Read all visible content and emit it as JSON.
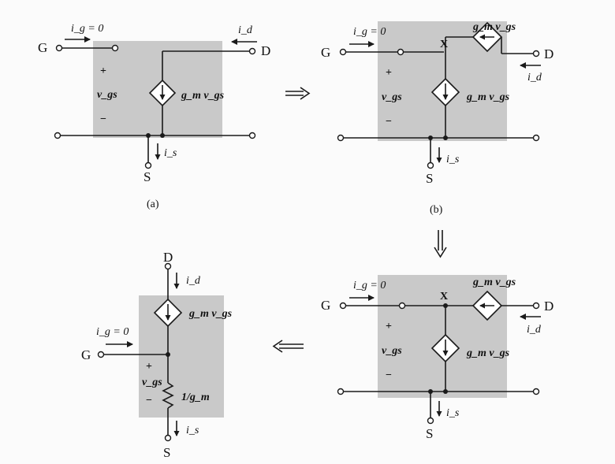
{
  "figure": {
    "panel_a": {
      "caption": "(a)",
      "ig_text": "i_g = 0",
      "id_text": "i_d",
      "is_text": "i_s",
      "source_text": "g_m v_gs",
      "gate": "G",
      "drain": "D",
      "source": "S",
      "plus": "+",
      "minus": "−",
      "vgs": "v_gs"
    },
    "panel_b": {
      "caption": "(b)",
      "ig_text": "i_g = 0",
      "id_text": "i_d",
      "is_text": "i_s",
      "source_text_top": "g_m v_gs",
      "source_text_bottom": "g_m v_gs",
      "node_x": "X",
      "gate": "G",
      "drain": "D",
      "source": "S",
      "plus": "+",
      "minus": "−",
      "vgs": "v_gs"
    },
    "panel_c": {
      "ig_text": "i_g = 0",
      "id_text": "i_d",
      "is_text": "i_s",
      "source_text_top": "g_m v_gs",
      "source_text_bottom": "g_m v_gs",
      "node_x": "X",
      "gate": "G",
      "drain": "D",
      "source": "S",
      "plus": "+",
      "minus": "−",
      "vgs": "v_gs"
    },
    "panel_d": {
      "ig_text": "i_g = 0",
      "id_text": "i_d",
      "is_text": "i_s",
      "source_text": "g_m v_gs",
      "resistor_text": "1/g_m",
      "gate": "G",
      "drain": "D",
      "source": "S",
      "plus": "+",
      "minus": "−",
      "vgs": "v_gs"
    }
  }
}
